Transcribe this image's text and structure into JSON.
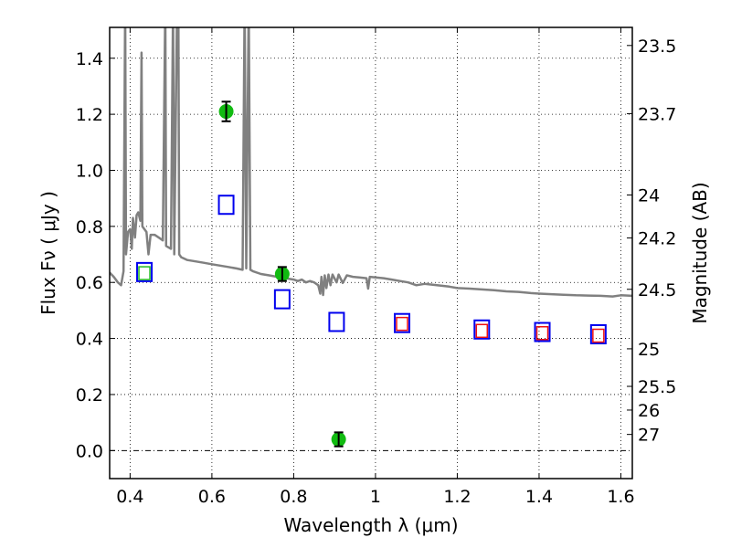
{
  "chart_data": {
    "type": "scatter",
    "title": "",
    "xlabel": "Wavelength  λ (μm)",
    "ylabel": "Flux  Fν  ( μJy )",
    "y2label": "Magnitude (AB)",
    "xlim": [
      0.35,
      1.628
    ],
    "ylim": [
      -0.1,
      1.51
    ],
    "grid": true,
    "x_ticks": [
      0.4,
      0.6,
      0.8,
      1.0,
      1.2,
      1.4,
      1.6
    ],
    "x_tick_labels": [
      "0.4",
      "0.6",
      "0.8",
      "1",
      "1.2",
      "1.4",
      "1.6"
    ],
    "y_ticks": [
      0.0,
      0.2,
      0.4,
      0.6,
      0.8,
      1.0,
      1.2,
      1.4
    ],
    "y_tick_labels": [
      "0.0",
      "0.2",
      "0.4",
      "0.6",
      "0.8",
      "1.0",
      "1.2",
      "1.4"
    ],
    "y2_ticks": [
      "23.5",
      "23.7",
      "24",
      "24.2",
      "24.5",
      "25",
      "25.5",
      "26",
      "27"
    ],
    "zero_line": true,
    "colors": {
      "spectrum": "#808080",
      "observed": "#11bb11",
      "model_blue": "#0000ee",
      "model_red": "#ee1111",
      "model_green_inner": "#22bb22",
      "errorbar": "#000000"
    },
    "series": [
      {
        "name": "observed_photometry",
        "marker": "circle",
        "color": "#11bb11",
        "points": [
          {
            "x": 0.635,
            "y": 1.21,
            "err": 0.035
          },
          {
            "x": 0.772,
            "y": 0.63,
            "err": 0.025
          },
          {
            "x": 0.91,
            "y": 0.04,
            "err": 0.025
          }
        ]
      },
      {
        "name": "model_photometry_blue",
        "marker": "square-open",
        "color": "#0000ee",
        "points": [
          {
            "x": 0.435,
            "y": 0.637
          },
          {
            "x": 0.635,
            "y": 0.877
          },
          {
            "x": 0.772,
            "y": 0.54
          },
          {
            "x": 0.905,
            "y": 0.459
          },
          {
            "x": 1.065,
            "y": 0.455
          },
          {
            "x": 1.26,
            "y": 0.432
          },
          {
            "x": 1.408,
            "y": 0.423
          },
          {
            "x": 1.545,
            "y": 0.415
          }
        ]
      },
      {
        "name": "model_photometry_red",
        "marker": "square-open-small",
        "color": "#ee1111",
        "points": [
          {
            "x": 1.065,
            "y": 0.452
          },
          {
            "x": 1.26,
            "y": 0.427
          },
          {
            "x": 1.408,
            "y": 0.419
          },
          {
            "x": 1.545,
            "y": 0.41
          }
        ]
      },
      {
        "name": "model_photometry_green",
        "marker": "square-open-small",
        "color": "#22bb22",
        "points": [
          {
            "x": 0.435,
            "y": 0.633
          }
        ]
      },
      {
        "name": "model_spectrum",
        "type": "line",
        "color": "#808080",
        "points": [
          [
            0.35,
            0.635
          ],
          [
            0.36,
            0.62
          ],
          [
            0.37,
            0.6
          ],
          [
            0.378,
            0.59
          ],
          [
            0.384,
            0.64
          ],
          [
            0.388,
            1.6
          ],
          [
            0.39,
            0.7
          ],
          [
            0.395,
            0.78
          ],
          [
            0.4,
            0.79
          ],
          [
            0.404,
            0.72
          ],
          [
            0.407,
            0.83
          ],
          [
            0.412,
            0.76
          ],
          [
            0.416,
            0.84
          ],
          [
            0.42,
            0.85
          ],
          [
            0.425,
            0.82
          ],
          [
            0.428,
            1.42
          ],
          [
            0.43,
            0.8
          ],
          [
            0.44,
            0.78
          ],
          [
            0.445,
            0.7
          ],
          [
            0.45,
            0.77
          ],
          [
            0.46,
            0.77
          ],
          [
            0.47,
            0.76
          ],
          [
            0.48,
            0.75
          ],
          [
            0.486,
            1.6
          ],
          [
            0.488,
            0.73
          ],
          [
            0.5,
            0.72
          ],
          [
            0.505,
            1.6
          ],
          [
            0.508,
            0.7
          ],
          [
            0.515,
            1.6
          ],
          [
            0.518,
            1.6
          ],
          [
            0.52,
            0.7
          ],
          [
            0.525,
            0.69
          ],
          [
            0.54,
            0.68
          ],
          [
            0.56,
            0.675
          ],
          [
            0.58,
            0.67
          ],
          [
            0.6,
            0.665
          ],
          [
            0.62,
            0.66
          ],
          [
            0.64,
            0.655
          ],
          [
            0.66,
            0.65
          ],
          [
            0.675,
            0.645
          ],
          [
            0.68,
            1.6
          ],
          [
            0.684,
            0.65
          ],
          [
            0.69,
            1.6
          ],
          [
            0.694,
            0.645
          ],
          [
            0.7,
            0.64
          ],
          [
            0.72,
            0.63
          ],
          [
            0.74,
            0.625
          ],
          [
            0.76,
            0.62
          ],
          [
            0.78,
            0.615
          ],
          [
            0.8,
            0.61
          ],
          [
            0.81,
            0.605
          ],
          [
            0.82,
            0.61
          ],
          [
            0.83,
            0.6
          ],
          [
            0.84,
            0.605
          ],
          [
            0.85,
            0.6
          ],
          [
            0.86,
            0.59
          ],
          [
            0.865,
            0.56
          ],
          [
            0.868,
            0.62
          ],
          [
            0.872,
            0.555
          ],
          [
            0.876,
            0.625
          ],
          [
            0.88,
            0.58
          ],
          [
            0.885,
            0.628
          ],
          [
            0.89,
            0.59
          ],
          [
            0.895,
            0.628
          ],
          [
            0.905,
            0.6
          ],
          [
            0.91,
            0.628
          ],
          [
            0.92,
            0.598
          ],
          [
            0.93,
            0.625
          ],
          [
            0.945,
            0.62
          ],
          [
            0.96,
            0.618
          ],
          [
            0.978,
            0.615
          ],
          [
            0.982,
            0.578
          ],
          [
            0.986,
            0.62
          ],
          [
            1.0,
            0.618
          ],
          [
            1.02,
            0.615
          ],
          [
            1.04,
            0.61
          ],
          [
            1.06,
            0.605
          ],
          [
            1.08,
            0.6
          ],
          [
            1.1,
            0.59
          ],
          [
            1.12,
            0.595
          ],
          [
            1.15,
            0.59
          ],
          [
            1.18,
            0.585
          ],
          [
            1.2,
            0.58
          ],
          [
            1.23,
            0.578
          ],
          [
            1.26,
            0.575
          ],
          [
            1.29,
            0.572
          ],
          [
            1.32,
            0.568
          ],
          [
            1.35,
            0.566
          ],
          [
            1.38,
            0.562
          ],
          [
            1.4,
            0.56
          ],
          [
            1.43,
            0.558
          ],
          [
            1.46,
            0.556
          ],
          [
            1.49,
            0.554
          ],
          [
            1.52,
            0.553
          ],
          [
            1.55,
            0.552
          ],
          [
            1.58,
            0.55
          ],
          [
            1.6,
            0.554
          ],
          [
            1.628,
            0.552
          ]
        ]
      }
    ]
  }
}
